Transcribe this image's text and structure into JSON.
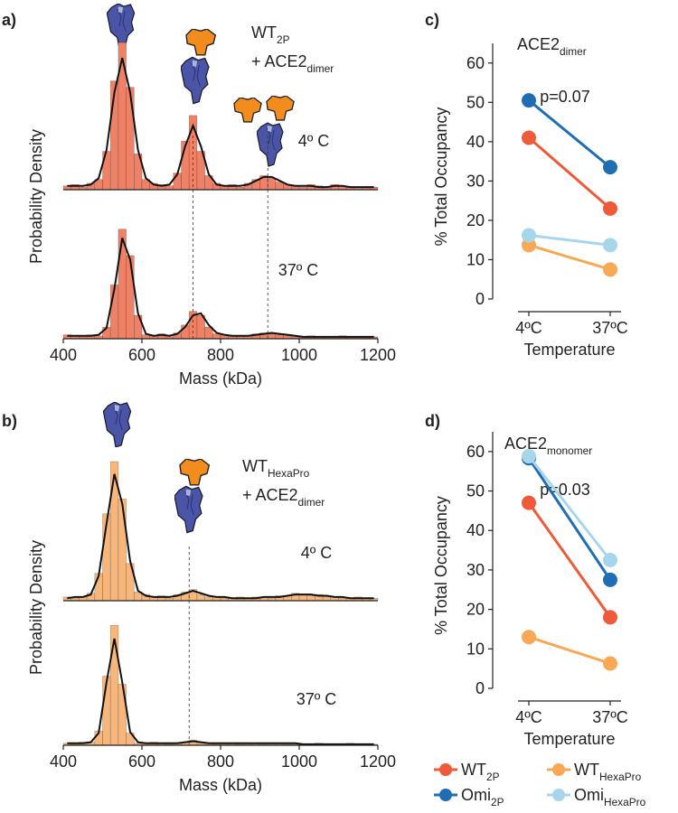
{
  "chart_data": [
    {
      "type": "histogram",
      "panel_label": "a)",
      "color": "#ef8266",
      "annotation": [
        {
          "text": "WT",
          "sub": "2P"
        },
        {
          "text": "+ ACE2",
          "sub": "dimer"
        }
      ],
      "xlabel": "Mass (kDa)",
      "ylabel": "Probability Density",
      "xlim": [
        400,
        1200
      ],
      "xticks": [
        400,
        600,
        800,
        1000,
        1200
      ],
      "ylim": [
        0,
        1.2
      ],
      "bins": [
        400,
        420,
        440,
        460,
        480,
        500,
        520,
        540,
        560,
        580,
        600,
        620,
        640,
        660,
        680,
        700,
        720,
        740,
        760,
        780,
        800,
        820,
        840,
        860,
        880,
        900,
        920,
        940,
        960,
        980,
        1000,
        1020,
        1040,
        1060,
        1080,
        1100,
        1120,
        1140,
        1160,
        1180,
        1200
      ],
      "vlines": [
        730,
        920
      ],
      "subplots": [
        {
          "label": "4º C",
          "values": [
            0.03,
            0.04,
            0.02,
            0.05,
            0.08,
            0.3,
            0.85,
            1.15,
            0.8,
            0.28,
            0.08,
            0.05,
            0.04,
            0.03,
            0.13,
            0.38,
            0.58,
            0.3,
            0.11,
            0.05,
            0.03,
            0.04,
            0.02,
            0.05,
            0.08,
            0.11,
            0.09,
            0.06,
            0.04,
            0.03,
            0.02,
            0.04,
            0.03,
            0.02,
            0.04,
            0.03,
            0.02,
            0.01,
            0.02,
            0.02
          ],
          "fit": [
            0.03,
            0.03,
            0.03,
            0.04,
            0.09,
            0.31,
            0.76,
            1.03,
            0.76,
            0.31,
            0.09,
            0.04,
            0.03,
            0.04,
            0.12,
            0.34,
            0.5,
            0.34,
            0.12,
            0.04,
            0.03,
            0.03,
            0.03,
            0.04,
            0.07,
            0.1,
            0.1,
            0.07,
            0.04,
            0.03,
            0.03,
            0.03,
            0.02,
            0.02,
            0.03,
            0.03,
            0.02,
            0.02,
            0.02,
            0.02
          ]
        },
        {
          "label": "37º C",
          "values": [
            0.04,
            0.03,
            0.02,
            0.04,
            0.03,
            0.12,
            0.55,
            1.12,
            0.85,
            0.24,
            0.04,
            0.03,
            0.05,
            0.02,
            0.06,
            0.14,
            0.28,
            0.24,
            0.12,
            0.05,
            0.04,
            0.03,
            0.02,
            0.03,
            0.05,
            0.06,
            0.05,
            0.04,
            0.03,
            0.02,
            0.02,
            0.03,
            0.02,
            0.01,
            0.02,
            0.03,
            0.02,
            0.02,
            0.01,
            0.02
          ],
          "fit": [
            0.03,
            0.03,
            0.03,
            0.03,
            0.04,
            0.11,
            0.51,
            1.03,
            0.81,
            0.26,
            0.05,
            0.03,
            0.04,
            0.03,
            0.05,
            0.12,
            0.24,
            0.26,
            0.14,
            0.06,
            0.04,
            0.03,
            0.03,
            0.03,
            0.04,
            0.05,
            0.06,
            0.05,
            0.04,
            0.03,
            0.02,
            0.02,
            0.02,
            0.02,
            0.02,
            0.02,
            0.02,
            0.02,
            0.02,
            0.02
          ]
        }
      ]
    },
    {
      "type": "histogram",
      "panel_label": "b)",
      "color": "#f7b67c",
      "annotation": [
        {
          "text": "WT",
          "sub": "HexaPro"
        },
        {
          "text": "+ ACE2",
          "sub": "dimer"
        }
      ],
      "xlabel": "Mass (kDa)",
      "ylabel": "Probability Density",
      "xlim": [
        400,
        1200
      ],
      "xticks": [
        400,
        600,
        800,
        1000,
        1200
      ],
      "ylim": [
        0,
        1.2
      ],
      "bins": [
        400,
        420,
        440,
        460,
        480,
        500,
        520,
        540,
        560,
        580,
        600,
        620,
        640,
        660,
        680,
        700,
        720,
        740,
        760,
        780,
        800,
        820,
        840,
        860,
        880,
        900,
        920,
        940,
        960,
        980,
        1000,
        1020,
        1040,
        1060,
        1080,
        1100,
        1120,
        1140,
        1160,
        1180,
        1200
      ],
      "vlines": [
        720
      ],
      "subplots": [
        {
          "label": "4º C",
          "values": [
            0.03,
            0.02,
            0.03,
            0.06,
            0.22,
            0.7,
            1.12,
            0.82,
            0.3,
            0.07,
            0.05,
            0.03,
            0.04,
            0.02,
            0.05,
            0.07,
            0.09,
            0.05,
            0.03,
            0.03,
            0.02,
            0.02,
            0.03,
            0.02,
            0.03,
            0.03,
            0.02,
            0.04,
            0.04,
            0.06,
            0.05,
            0.04,
            0.05,
            0.03,
            0.03,
            0.02,
            0.02,
            0.03,
            0.02,
            0.02
          ],
          "fit": [
            0.02,
            0.03,
            0.03,
            0.05,
            0.2,
            0.62,
            1.02,
            0.78,
            0.32,
            0.08,
            0.04,
            0.03,
            0.03,
            0.03,
            0.04,
            0.06,
            0.08,
            0.06,
            0.04,
            0.03,
            0.03,
            0.02,
            0.02,
            0.02,
            0.02,
            0.03,
            0.03,
            0.03,
            0.04,
            0.05,
            0.05,
            0.05,
            0.04,
            0.04,
            0.03,
            0.03,
            0.02,
            0.02,
            0.02,
            0.02
          ]
        },
        {
          "label": "37º C",
          "values": [
            0.02,
            0.01,
            0.03,
            0.03,
            0.14,
            0.68,
            1.18,
            0.6,
            0.12,
            0.02,
            0.02,
            0.03,
            0.02,
            0.01,
            0.02,
            0.03,
            0.05,
            0.02,
            0.02,
            0.01,
            0.02,
            0.02,
            0.01,
            0.02,
            0.02,
            0.01,
            0.02,
            0.02,
            0.01,
            0.02,
            0.01,
            0.01,
            0.02,
            0.01,
            0.01,
            0.01,
            0.02,
            0.01,
            0.01,
            0.01
          ],
          "fit": [
            0.02,
            0.02,
            0.02,
            0.03,
            0.12,
            0.62,
            1.05,
            0.62,
            0.13,
            0.03,
            0.02,
            0.02,
            0.02,
            0.02,
            0.02,
            0.03,
            0.04,
            0.03,
            0.02,
            0.02,
            0.02,
            0.02,
            0.02,
            0.02,
            0.02,
            0.02,
            0.02,
            0.02,
            0.02,
            0.02,
            0.01,
            0.01,
            0.01,
            0.01,
            0.01,
            0.01,
            0.01,
            0.01,
            0.01,
            0.01
          ]
        }
      ]
    },
    {
      "type": "line",
      "panel_label": "c)",
      "title": "ACE2",
      "title_sub": "dimer",
      "annotation": "p=0.07",
      "xlabel": "Temperature",
      "ylabel": "% Total Occupancy",
      "categories": [
        "4ºC",
        "37ºC"
      ],
      "ylim": [
        0,
        65
      ],
      "yticks": [
        0,
        10,
        20,
        30,
        40,
        50,
        60
      ],
      "series": [
        {
          "color": "#ee5a3a",
          "values": [
            41,
            23
          ]
        },
        {
          "color": "#1f6eb3",
          "values": [
            50.5,
            33.5
          ]
        },
        {
          "color": "#f9a955",
          "values": [
            13.7,
            7.5
          ]
        },
        {
          "color": "#a7d6ea",
          "values": [
            16.2,
            13.7
          ]
        }
      ]
    },
    {
      "type": "line",
      "panel_label": "d)",
      "title": "ACE2",
      "title_sub": "monomer",
      "annotation": "p=0.03",
      "xlabel": "Temperature",
      "ylabel": "% Total Occupancy",
      "categories": [
        "4ºC",
        "37ºC"
      ],
      "ylim": [
        0,
        65
      ],
      "yticks": [
        0,
        10,
        20,
        30,
        40,
        50,
        60
      ],
      "series": [
        {
          "name": "WT",
          "name_sub": "2P",
          "color": "#ee5a3a",
          "values": [
            47,
            18
          ]
        },
        {
          "name": "Omi",
          "name_sub": "2P",
          "color": "#1f6eb3",
          "values": [
            58.3,
            27.5
          ]
        },
        {
          "name": "WT",
          "name_sub": "HexaPro",
          "color": "#f9a955",
          "values": [
            13,
            6.3
          ]
        },
        {
          "name": "Omi",
          "name_sub": "HexaPro",
          "color": "#a7d6ea",
          "values": [
            58.8,
            32.5
          ]
        }
      ]
    }
  ]
}
